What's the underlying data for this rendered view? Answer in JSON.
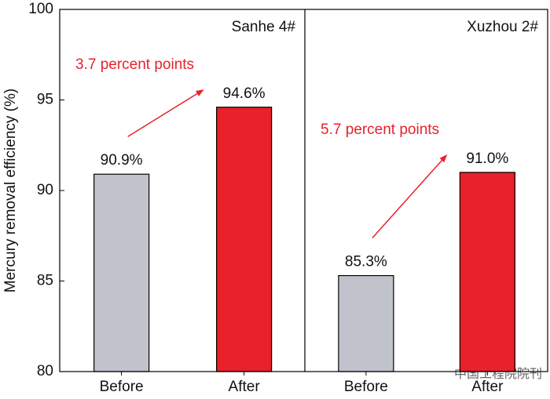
{
  "chart_data": {
    "type": "bar",
    "ylabel": "Mercury removal efficiency (%)",
    "ylim": [
      80,
      100
    ],
    "yticks": [
      80,
      85,
      90,
      95,
      100
    ],
    "panels": [
      {
        "title": "Sanhe 4#",
        "categories": [
          "Before",
          "After"
        ],
        "values": [
          90.9,
          94.6
        ],
        "value_labels": [
          "90.9%",
          "94.6%"
        ],
        "colors": [
          "#c0c3cb",
          "#e8212b"
        ],
        "annotation": "3.7 percent points"
      },
      {
        "title": "Xuzhou 2#",
        "categories": [
          "Before",
          "After"
        ],
        "values": [
          85.3,
          91.0
        ],
        "value_labels": [
          "85.3%",
          "91.0%"
        ],
        "colors": [
          "#c0c3cb",
          "#e8212b"
        ],
        "annotation": "5.7 percent points"
      }
    ],
    "annotation_color": "#e8212b",
    "watermark": "中国工程院院刊"
  }
}
